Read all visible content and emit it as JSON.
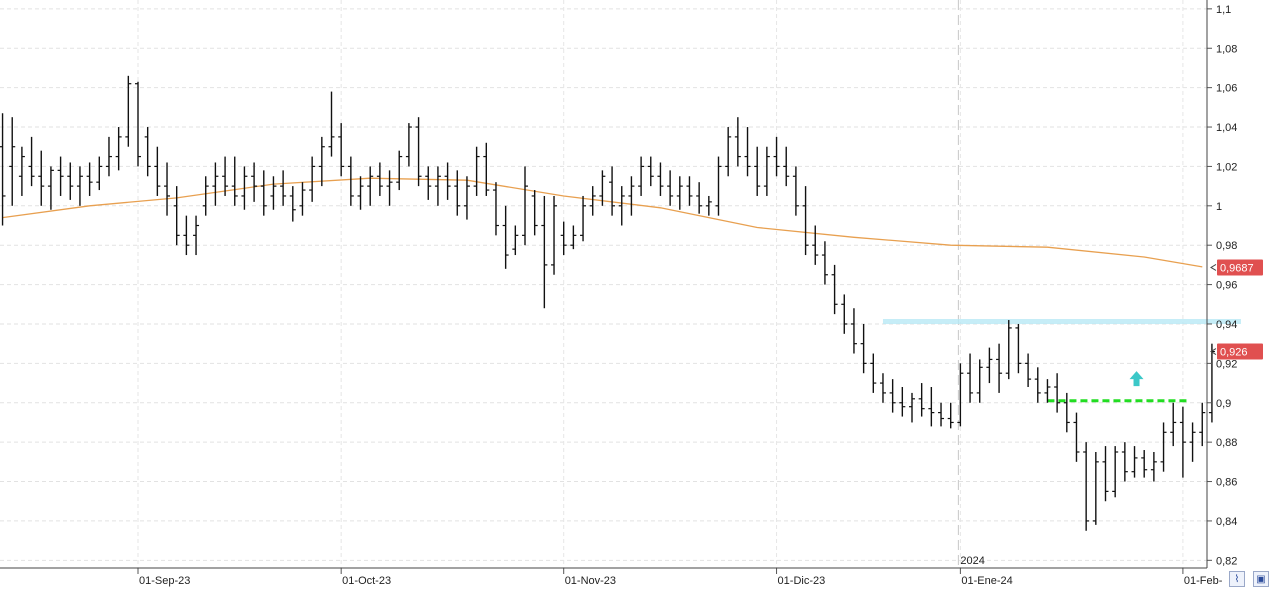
{
  "chart_data": {
    "type": "ohlc",
    "y_ticks": [
      "1,1",
      "1,08",
      "1,06",
      "1,04",
      "1,02",
      "1",
      "0,98",
      "0,96",
      "0,94",
      "0,92",
      "0,9",
      "0,88",
      "0,86",
      "0,84",
      "0,82"
    ],
    "y_tick_values": [
      1.1,
      1.08,
      1.06,
      1.04,
      1.02,
      1.0,
      0.98,
      0.96,
      0.94,
      0.92,
      0.9,
      0.88,
      0.86,
      0.84,
      0.82
    ],
    "ylim": [
      0.8161,
      1.1045
    ],
    "x_labels": [
      {
        "label": "01-Sep-23",
        "bar": 0
      },
      {
        "label": "01-Oct-23",
        "bar": 21
      },
      {
        "label": "01-Nov-23",
        "bar": 44
      },
      {
        "label": "01-Dic-23",
        "bar": 66
      },
      {
        "label": "01-Ene-24",
        "bar": 85
      },
      {
        "label": "01-Feb-",
        "bar": 108
      }
    ],
    "year_marker": {
      "label": "2024",
      "bar": 85
    },
    "grid": true,
    "price_badges": [
      {
        "label": "0,9687",
        "value": 0.9687,
        "color": "#e05050"
      },
      {
        "label": "0,926",
        "value": 0.926,
        "color": "#e05050"
      }
    ],
    "moving_average": {
      "color": "#e8a050",
      "points": [
        [
          -14,
          0.994
        ],
        [
          -5,
          1.0
        ],
        [
          4,
          1.004
        ],
        [
          14,
          1.011
        ],
        [
          24,
          1.014
        ],
        [
          34,
          1.013
        ],
        [
          44,
          1.005
        ],
        [
          54,
          0.999
        ],
        [
          64,
          0.989
        ],
        [
          74,
          0.984
        ],
        [
          84,
          0.98
        ],
        [
          94,
          0.979
        ],
        [
          104,
          0.974
        ],
        [
          110,
          0.969
        ]
      ]
    },
    "resistance": {
      "value": 0.941,
      "bar_from": 77,
      "bar_to": 114,
      "color": "#b8e8f5"
    },
    "support": {
      "value": 0.901,
      "bar_from": 94,
      "bar_to": 108,
      "color": "#22dd22"
    },
    "signal_arrow": {
      "bar": 103,
      "value": 0.912,
      "color": "#3cc8c8"
    },
    "bars": [
      [
        -14,
        1.03,
        1.047,
        0.99,
        1.005
      ],
      [
        -13,
        1.02,
        1.045,
        1.0,
        1.03
      ],
      [
        -12,
        1.015,
        1.03,
        1.005,
        1.025
      ],
      [
        -11,
        1.02,
        1.035,
        1.01,
        1.015
      ],
      [
        -10,
        1.015,
        1.028,
        1.0,
        1.01
      ],
      [
        -9,
        1.01,
        1.02,
        0.998,
        1.018
      ],
      [
        -8,
        1.018,
        1.025,
        1.005,
        1.015
      ],
      [
        -7,
        1.015,
        1.022,
        1.003,
        1.01
      ],
      [
        -6,
        1.01,
        1.02,
        1.0,
        1.015
      ],
      [
        -5,
        1.015,
        1.022,
        1.005,
        1.012
      ],
      [
        -4,
        1.012,
        1.025,
        1.008,
        1.02
      ],
      [
        -3,
        1.02,
        1.035,
        1.015,
        1.025
      ],
      [
        -2,
        1.025,
        1.04,
        1.018,
        1.035
      ],
      [
        -1,
        1.035,
        1.066,
        1.03,
        1.062
      ],
      [
        0,
        1.062,
        1.063,
        1.02,
        1.025
      ],
      [
        1,
        1.035,
        1.04,
        1.015,
        1.02
      ],
      [
        2,
        1.02,
        1.03,
        1.005,
        1.01
      ],
      [
        3,
        1.01,
        1.022,
        0.995,
        1.005
      ],
      [
        4,
        1.0,
        1.01,
        0.98,
        0.985
      ],
      [
        5,
        0.985,
        0.995,
        0.975,
        0.98
      ],
      [
        6,
        0.985,
        0.995,
        0.975,
        0.99
      ],
      [
        7,
        1.0,
        1.015,
        0.995,
        1.01
      ],
      [
        8,
        1.01,
        1.022,
        1.0,
        1.015
      ],
      [
        9,
        1.015,
        1.025,
        1.005,
        1.01
      ],
      [
        10,
        1.01,
        1.025,
        1.0,
        1.005
      ],
      [
        11,
        1.005,
        1.02,
        0.998,
        1.015
      ],
      [
        12,
        1.015,
        1.022,
        1.002,
        1.01
      ],
      [
        13,
        1.01,
        1.018,
        0.995,
        1.0
      ],
      [
        14,
        1.005,
        1.015,
        0.998,
        1.01
      ],
      [
        15,
        1.01,
        1.018,
        1.0,
        1.005
      ],
      [
        16,
        1.005,
        1.01,
        0.992,
        0.998
      ],
      [
        17,
        1.0,
        1.012,
        0.995,
        1.008
      ],
      [
        18,
        1.008,
        1.025,
        1.002,
        1.02
      ],
      [
        19,
        1.02,
        1.035,
        1.01,
        1.03
      ],
      [
        20,
        1.03,
        1.058,
        1.025,
        1.035
      ],
      [
        21,
        1.035,
        1.042,
        1.015,
        1.02
      ],
      [
        22,
        1.02,
        1.025,
        1.0,
        1.005
      ],
      [
        23,
        1.005,
        1.015,
        0.998,
        1.01
      ],
      [
        24,
        1.01,
        1.02,
        1.0,
        1.015
      ],
      [
        25,
        1.015,
        1.022,
        1.005,
        1.01
      ],
      [
        26,
        1.01,
        1.018,
        1.0,
        1.012
      ],
      [
        27,
        1.012,
        1.028,
        1.008,
        1.025
      ],
      [
        28,
        1.025,
        1.042,
        1.02,
        1.04
      ],
      [
        29,
        1.04,
        1.045,
        1.01,
        1.015
      ],
      [
        30,
        1.015,
        1.02,
        1.003,
        1.01
      ],
      [
        31,
        1.01,
        1.02,
        1.0,
        1.015
      ],
      [
        32,
        1.015,
        1.022,
        1.003,
        1.01
      ],
      [
        33,
        1.01,
        1.018,
        0.995,
        1.0
      ],
      [
        34,
        1.0,
        1.015,
        0.993,
        1.01
      ],
      [
        35,
        1.01,
        1.03,
        1.005,
        1.025
      ],
      [
        36,
        1.025,
        1.032,
        1.005,
        1.008
      ],
      [
        37,
        1.008,
        1.012,
        0.985,
        0.99
      ],
      [
        38,
        0.99,
        1.0,
        0.968,
        0.975
      ],
      [
        39,
        0.978,
        0.99,
        0.975,
        0.985
      ],
      [
        40,
        0.985,
        1.02,
        0.98,
        1.01
      ],
      [
        41,
        1.005,
        1.008,
        0.985,
        0.99
      ],
      [
        42,
        0.99,
        1.005,
        0.948,
        0.97
      ],
      [
        43,
        0.97,
        1.005,
        0.965,
        1.0
      ],
      [
        44,
        0.985,
        0.992,
        0.975,
        0.98
      ],
      [
        45,
        0.98,
        0.99,
        0.978,
        0.985
      ],
      [
        46,
        0.985,
        1.005,
        0.982,
        1.0
      ],
      [
        47,
        1.0,
        1.01,
        0.995,
        1.005
      ],
      [
        48,
        1.005,
        1.018,
        1.0,
        1.015
      ],
      [
        49,
        1.012,
        1.02,
        0.995,
        1.0
      ],
      [
        50,
        1.0,
        1.01,
        0.99,
        1.005
      ],
      [
        51,
        1.005,
        1.015,
        0.995,
        1.01
      ],
      [
        52,
        1.01,
        1.025,
        1.005,
        1.02
      ],
      [
        53,
        1.02,
        1.025,
        1.01,
        1.015
      ],
      [
        54,
        1.015,
        1.022,
        1.005,
        1.01
      ],
      [
        55,
        1.01,
        1.018,
        1.0,
        1.005
      ],
      [
        56,
        1.005,
        1.015,
        0.998,
        1.01
      ],
      [
        57,
        1.01,
        1.015,
        1.0,
        1.005
      ],
      [
        58,
        1.005,
        1.012,
        0.996,
        1.0
      ],
      [
        59,
        1.0,
        1.005,
        0.995,
        1.002
      ],
      [
        60,
        1.0,
        1.025,
        0.995,
        1.02
      ],
      [
        61,
        1.02,
        1.04,
        1.015,
        1.035
      ],
      [
        62,
        1.035,
        1.045,
        1.02,
        1.025
      ],
      [
        63,
        1.025,
        1.04,
        1.015,
        1.02
      ],
      [
        64,
        1.02,
        1.03,
        1.005,
        1.01
      ],
      [
        65,
        1.01,
        1.03,
        1.005,
        1.025
      ],
      [
        66,
        1.025,
        1.035,
        1.015,
        1.02
      ],
      [
        67,
        1.02,
        1.03,
        1.01,
        1.015
      ],
      [
        68,
        1.015,
        1.02,
        0.995,
        1.0
      ],
      [
        69,
        1.0,
        1.01,
        0.975,
        0.98
      ],
      [
        70,
        0.98,
        0.99,
        0.97,
        0.975
      ],
      [
        71,
        0.975,
        0.982,
        0.96,
        0.965
      ],
      [
        72,
        0.965,
        0.97,
        0.945,
        0.95
      ],
      [
        73,
        0.95,
        0.955,
        0.935,
        0.94
      ],
      [
        74,
        0.94,
        0.948,
        0.925,
        0.93
      ],
      [
        75,
        0.93,
        0.94,
        0.915,
        0.92
      ],
      [
        76,
        0.92,
        0.925,
        0.905,
        0.91
      ],
      [
        77,
        0.91,
        0.915,
        0.9,
        0.905
      ],
      [
        78,
        0.905,
        0.912,
        0.895,
        0.9
      ],
      [
        79,
        0.9,
        0.908,
        0.893,
        0.898
      ],
      [
        80,
        0.898,
        0.905,
        0.89,
        0.902
      ],
      [
        81,
        0.902,
        0.91,
        0.893,
        0.897
      ],
      [
        82,
        0.897,
        0.908,
        0.888,
        0.895
      ],
      [
        83,
        0.895,
        0.9,
        0.888,
        0.892
      ],
      [
        84,
        0.892,
        0.9,
        0.887,
        0.89
      ],
      [
        85,
        0.89,
        0.92,
        0.888,
        0.915
      ],
      [
        86,
        0.915,
        0.925,
        0.9,
        0.905
      ],
      [
        87,
        0.905,
        0.922,
        0.9,
        0.918
      ],
      [
        88,
        0.918,
        0.928,
        0.91,
        0.922
      ],
      [
        89,
        0.922,
        0.93,
        0.905,
        0.915
      ],
      [
        90,
        0.915,
        0.942,
        0.912,
        0.938
      ],
      [
        91,
        0.938,
        0.94,
        0.915,
        0.92
      ],
      [
        92,
        0.92,
        0.925,
        0.908,
        0.912
      ],
      [
        93,
        0.912,
        0.918,
        0.9,
        0.905
      ],
      [
        94,
        0.905,
        0.912,
        0.9,
        0.908
      ],
      [
        95,
        0.908,
        0.915,
        0.895,
        0.9
      ],
      [
        96,
        0.9,
        0.905,
        0.885,
        0.89
      ],
      [
        97,
        0.89,
        0.895,
        0.87,
        0.875
      ],
      [
        98,
        0.875,
        0.88,
        0.835,
        0.84
      ],
      [
        99,
        0.84,
        0.875,
        0.838,
        0.87
      ],
      [
        100,
        0.87,
        0.878,
        0.85,
        0.855
      ],
      [
        101,
        0.855,
        0.878,
        0.852,
        0.875
      ],
      [
        102,
        0.875,
        0.88,
        0.86,
        0.865
      ],
      [
        103,
        0.865,
        0.878,
        0.862,
        0.872
      ],
      [
        104,
        0.872,
        0.876,
        0.862,
        0.866
      ],
      [
        105,
        0.866,
        0.875,
        0.86,
        0.87
      ],
      [
        106,
        0.87,
        0.89,
        0.865,
        0.885
      ],
      [
        107,
        0.885,
        0.9,
        0.878,
        0.89
      ],
      [
        108,
        0.89,
        0.898,
        0.862,
        0.88
      ],
      [
        109,
        0.88,
        0.89,
        0.87,
        0.885
      ],
      [
        110,
        0.885,
        0.9,
        0.878,
        0.895
      ],
      [
        111,
        0.895,
        0.93,
        0.89,
        0.926
      ]
    ]
  },
  "toolbar": {
    "zoom_icon": "zoom-chart-icon",
    "save_icon": "save-disk-icon"
  }
}
